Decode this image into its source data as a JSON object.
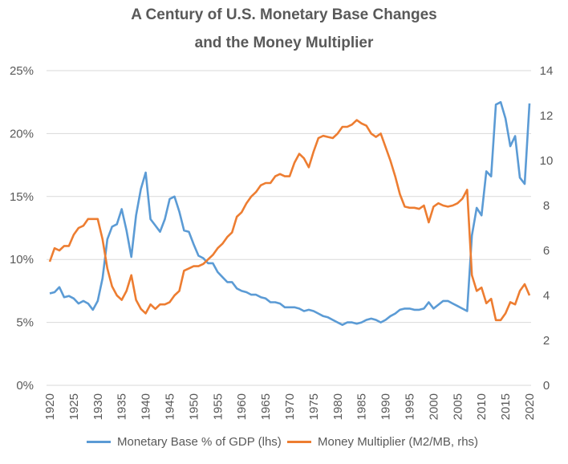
{
  "chart_data": {
    "type": "line",
    "title": [
      "A Century of U.S. Monetary Base Changes",
      "and the Money Multiplier"
    ],
    "x_start": 1920,
    "x_end": 2020,
    "x_ticks": [
      "1920",
      "1925",
      "1930",
      "1935",
      "1940",
      "1945",
      "1950",
      "1955",
      "1960",
      "1965",
      "1970",
      "1975",
      "1980",
      "1985",
      "1990",
      "1995",
      "2000",
      "2005",
      "2010",
      "2015",
      "2020"
    ],
    "y_left": {
      "ylim": [
        0,
        25
      ],
      "ticks": [
        "0%",
        "5%",
        "10%",
        "15%",
        "20%",
        "25%"
      ]
    },
    "y_right": {
      "ylim": [
        0,
        14
      ],
      "ticks": [
        "0",
        "2",
        "4",
        "6",
        "8",
        "10",
        "12",
        "14"
      ]
    },
    "grid": true,
    "legend_position": "bottom",
    "series": [
      {
        "name": "Monetary Base % of GDP (lhs)",
        "axis": "left",
        "color": "#5B9BD5",
        "values": [
          7.3,
          7.4,
          7.8,
          7.0,
          7.1,
          6.9,
          6.5,
          6.7,
          6.5,
          6.0,
          6.7,
          8.5,
          11.6,
          12.6,
          12.8,
          14.0,
          12.3,
          10.2,
          13.5,
          15.6,
          16.9,
          13.2,
          12.7,
          12.2,
          13.2,
          14.8,
          15.0,
          13.8,
          12.3,
          12.2,
          11.2,
          10.3,
          10.1,
          9.7,
          9.7,
          9.0,
          8.6,
          8.2,
          8.2,
          7.7,
          7.5,
          7.4,
          7.2,
          7.2,
          7.0,
          6.9,
          6.6,
          6.6,
          6.5,
          6.2,
          6.2,
          6.2,
          6.1,
          5.9,
          6.0,
          5.9,
          5.7,
          5.5,
          5.4,
          5.2,
          5.0,
          4.8,
          5.0,
          5.0,
          4.9,
          5.0,
          5.2,
          5.3,
          5.2,
          5.0,
          5.2,
          5.5,
          5.7,
          6.0,
          6.1,
          6.1,
          6.0,
          6.0,
          6.1,
          6.6,
          6.1,
          6.4,
          6.7,
          6.7,
          6.5,
          6.3,
          6.1,
          5.9,
          11.9,
          14.1,
          13.5,
          17.0,
          16.6,
          22.3,
          22.5,
          21.2,
          19.0,
          19.8,
          16.5,
          16.0,
          22.4
        ]
      },
      {
        "name": "Money Multiplier (M2/MB, rhs)",
        "axis": "right",
        "color": "#ED7D31",
        "values": [
          5.5,
          6.1,
          6.0,
          6.2,
          6.2,
          6.7,
          7.0,
          7.1,
          7.4,
          7.4,
          7.4,
          6.5,
          5.2,
          4.4,
          4.0,
          3.8,
          4.2,
          4.9,
          3.8,
          3.4,
          3.2,
          3.6,
          3.4,
          3.6,
          3.6,
          3.7,
          4.0,
          4.2,
          5.1,
          5.2,
          5.3,
          5.3,
          5.4,
          5.6,
          5.8,
          6.1,
          6.3,
          6.6,
          6.8,
          7.5,
          7.7,
          8.1,
          8.4,
          8.6,
          8.9,
          9.0,
          9.0,
          9.3,
          9.4,
          9.3,
          9.3,
          9.9,
          10.3,
          10.1,
          9.7,
          10.4,
          11.0,
          11.1,
          11.05,
          11.0,
          11.2,
          11.5,
          11.5,
          11.6,
          11.8,
          11.65,
          11.55,
          11.2,
          11.05,
          11.2,
          10.6,
          10.0,
          9.3,
          8.5,
          7.95,
          7.9,
          7.9,
          7.85,
          8.0,
          7.25,
          7.95,
          8.1,
          8.0,
          7.95,
          8.0,
          8.1,
          8.3,
          8.7,
          4.9,
          4.2,
          4.35,
          3.65,
          3.85,
          2.9,
          2.9,
          3.2,
          3.7,
          3.6,
          4.2,
          4.5,
          4.0
        ]
      }
    ]
  }
}
